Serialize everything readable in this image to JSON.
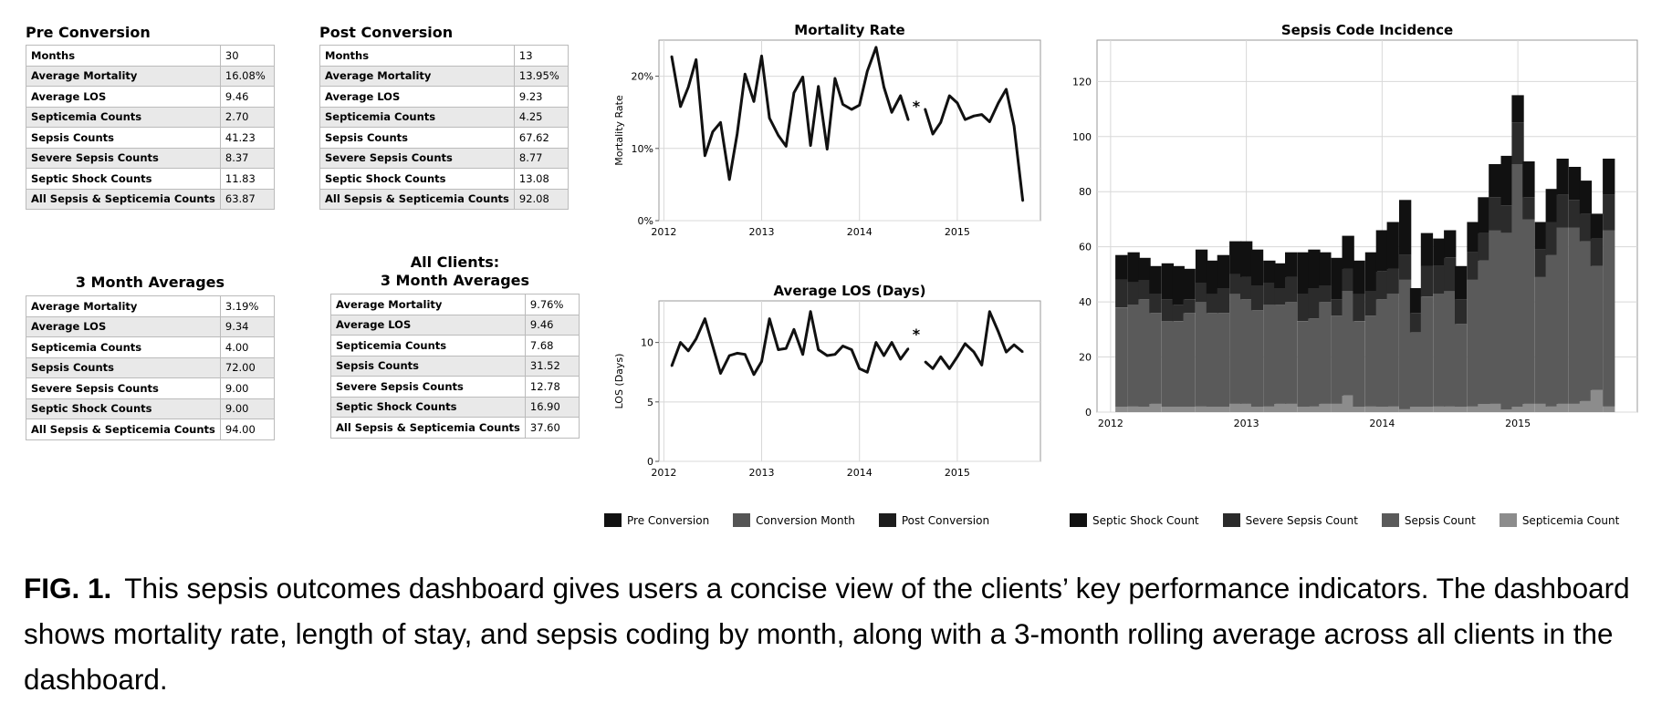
{
  "tables": [
    {
      "title": "Pre Conversion",
      "rows": [
        [
          "Months",
          "30"
        ],
        [
          "Average Mortality",
          "16.08%"
        ],
        [
          "Average LOS",
          "9.46"
        ],
        [
          "Septicemia Counts",
          "2.70"
        ],
        [
          "Sepsis Counts",
          "41.23"
        ],
        [
          "Severe Sepsis Counts",
          "8.37"
        ],
        [
          "Septic Shock Counts",
          "11.83"
        ],
        [
          "All Sepsis & Septicemia Counts",
          "63.87"
        ]
      ]
    },
    {
      "title": "Post Conversion",
      "rows": [
        [
          "Months",
          "13"
        ],
        [
          "Average Mortality",
          "13.95%"
        ],
        [
          "Average LOS",
          "9.23"
        ],
        [
          "Septicemia Counts",
          "4.25"
        ],
        [
          "Sepsis Counts",
          "67.62"
        ],
        [
          "Severe Sepsis Counts",
          "8.77"
        ],
        [
          "Septic Shock Counts",
          "13.08"
        ],
        [
          "All Sepsis & Septicemia Counts",
          "92.08"
        ]
      ]
    },
    {
      "title": "3 Month Averages",
      "rows": [
        [
          "Average Mortality",
          "3.19%"
        ],
        [
          "Average LOS",
          "9.34"
        ],
        [
          "Septicemia Counts",
          "4.00"
        ],
        [
          "Sepsis Counts",
          "72.00"
        ],
        [
          "Severe Sepsis Counts",
          "9.00"
        ],
        [
          "Septic Shock Counts",
          "9.00"
        ],
        [
          "All Sepsis & Septicemia Counts",
          "94.00"
        ]
      ]
    },
    {
      "title_line1": "All Clients:",
      "title_line2": "3 Month Averages",
      "rows": [
        [
          "Average Mortality",
          "9.76%"
        ],
        [
          "Average LOS",
          "9.46"
        ],
        [
          "Septicemia Counts",
          "7.68"
        ],
        [
          "Sepsis Counts",
          "31.52"
        ],
        [
          "Severe Sepsis Counts",
          "12.78"
        ],
        [
          "Septic Shock Counts",
          "16.90"
        ],
        [
          "All Sepsis & Septicemia Counts",
          "37.60"
        ]
      ]
    }
  ],
  "chart_data": [
    {
      "type": "line",
      "title": "Mortality Rate",
      "ylabel": "Mortality Rate",
      "ylim": [
        0,
        25
      ],
      "yticks": [
        "0%",
        "10%",
        "20%"
      ],
      "xticks": [
        "2012",
        "2013",
        "2014",
        "2015"
      ],
      "marker": "*",
      "series": [
        {
          "name": "Pre Conversion",
          "x": [
            2012.08,
            2012.17,
            2012.25,
            2012.33,
            2012.42,
            2012.5,
            2012.58,
            2012.67,
            2012.75,
            2012.83,
            2012.92,
            2013.0,
            2013.08,
            2013.17,
            2013.25,
            2013.33,
            2013.42,
            2013.5,
            2013.58,
            2013.67,
            2013.75,
            2013.83,
            2013.92,
            2014.0,
            2014.08,
            2014.17,
            2014.25,
            2014.33,
            2014.42,
            2014.5
          ],
          "values": [
            22.8,
            15.8,
            18.5,
            22.3,
            9.0,
            12.3,
            13.6,
            5.7,
            12.0,
            20.3,
            16.5,
            22.8,
            14.2,
            11.8,
            10.3,
            17.7,
            19.9,
            10.4,
            18.6,
            9.9,
            19.7,
            16.1,
            15.4,
            16.0,
            20.7,
            24.0,
            18.5,
            15.0,
            17.3,
            13.9
          ]
        },
        {
          "name": "Post Conversion",
          "x": [
            2014.67,
            2014.75,
            2014.83,
            2014.92,
            2015.0,
            2015.08,
            2015.17,
            2015.25,
            2015.33,
            2015.42,
            2015.5,
            2015.58,
            2015.67
          ],
          "values": [
            15.5,
            12.0,
            13.6,
            17.3,
            16.3,
            14.0,
            14.5,
            14.7,
            13.7,
            16.3,
            18.2,
            13.1,
            2.7
          ]
        }
      ]
    },
    {
      "type": "line",
      "title": "Average LOS (Days)",
      "ylabel": "LOS (Days)",
      "ylim": [
        0,
        13.5
      ],
      "yticks": [
        "0",
        "5",
        "10"
      ],
      "xticks": [
        "2012",
        "2013",
        "2014",
        "2015"
      ],
      "marker": "*",
      "series": [
        {
          "name": "Pre Conversion",
          "x": [
            2012.08,
            2012.17,
            2012.25,
            2012.33,
            2012.42,
            2012.5,
            2012.58,
            2012.67,
            2012.75,
            2012.83,
            2012.92,
            2013.0,
            2013.08,
            2013.17,
            2013.25,
            2013.33,
            2013.42,
            2013.5,
            2013.58,
            2013.67,
            2013.75,
            2013.83,
            2013.92,
            2014.0,
            2014.08,
            2014.17,
            2014.25,
            2014.33,
            2014.42,
            2014.5
          ],
          "values": [
            8.0,
            10.0,
            9.3,
            10.3,
            12.0,
            9.7,
            7.4,
            8.9,
            9.1,
            9.0,
            7.3,
            8.4,
            12.0,
            9.4,
            9.5,
            11.1,
            9.0,
            12.6,
            9.4,
            8.9,
            9.0,
            9.7,
            9.4,
            7.8,
            7.5,
            10.0,
            8.9,
            10.0,
            8.6,
            9.5
          ]
        },
        {
          "name": "Post Conversion",
          "x": [
            2014.67,
            2014.75,
            2014.83,
            2014.92,
            2015.0,
            2015.08,
            2015.17,
            2015.25,
            2015.33,
            2015.42,
            2015.5,
            2015.58,
            2015.67
          ],
          "values": [
            8.4,
            7.8,
            8.8,
            7.8,
            8.8,
            9.9,
            9.2,
            8.1,
            12.6,
            10.9,
            9.2,
            9.8,
            9.2
          ]
        }
      ]
    },
    {
      "type": "bar",
      "title": "Sepsis Code Incidence",
      "ylim": [
        0,
        135
      ],
      "yticks": [
        "0",
        "20",
        "40",
        "60",
        "80",
        "100",
        "120"
      ],
      "xticks": [
        "2012",
        "2013",
        "2014",
        "2015"
      ],
      "x": [
        2012.08,
        2012.17,
        2012.25,
        2012.33,
        2012.42,
        2012.5,
        2012.58,
        2012.67,
        2012.75,
        2012.83,
        2012.92,
        2013.0,
        2013.08,
        2013.17,
        2013.25,
        2013.33,
        2013.42,
        2013.5,
        2013.58,
        2013.67,
        2013.75,
        2013.83,
        2013.92,
        2014.0,
        2014.08,
        2014.17,
        2014.25,
        2014.33,
        2014.42,
        2014.5,
        2014.58,
        2014.67,
        2014.75,
        2014.83,
        2014.92,
        2015.0,
        2015.08,
        2015.17,
        2015.25,
        2015.33,
        2015.42,
        2015.5,
        2015.58,
        2015.67
      ],
      "series": [
        {
          "name": "Septicemia Count",
          "values": [
            2,
            2,
            2,
            3,
            2,
            2,
            2,
            2,
            2,
            2,
            3,
            3,
            2,
            2,
            3,
            3,
            2,
            2,
            3,
            3,
            6,
            2,
            2,
            2,
            2,
            1,
            2,
            2,
            2,
            2,
            2,
            2,
            3,
            3,
            1,
            2,
            3,
            3,
            2,
            3,
            3,
            4,
            8,
            2
          ]
        },
        {
          "name": "Sepsis Count",
          "values": [
            36,
            37,
            39,
            33,
            31,
            31,
            34,
            38,
            34,
            34,
            40,
            38,
            35,
            37,
            36,
            37,
            31,
            32,
            37,
            32,
            38,
            31,
            33,
            39,
            41,
            47,
            27,
            40,
            41,
            42,
            30,
            46,
            52,
            63,
            64,
            88,
            67,
            46,
            55,
            64,
            64,
            58,
            45,
            64
          ]
        },
        {
          "name": "Severe Sepsis Count",
          "values": [
            10,
            8,
            7,
            7,
            8,
            6,
            5,
            7,
            7,
            9,
            7,
            8,
            9,
            8,
            6,
            9,
            10,
            11,
            6,
            6,
            8,
            10,
            9,
            10,
            9,
            9,
            7,
            11,
            10,
            12,
            9,
            10,
            10,
            12,
            10,
            15,
            8,
            10,
            12,
            12,
            10,
            10,
            10,
            13
          ]
        },
        {
          "name": "Septic Shock Count",
          "values": [
            9,
            11,
            8,
            10,
            13,
            14,
            11,
            12,
            12,
            12,
            12,
            13,
            13,
            8,
            9,
            9,
            15,
            14,
            12,
            15,
            12,
            12,
            14,
            15,
            17,
            20,
            9,
            12,
            10,
            10,
            12,
            11,
            13,
            12,
            18,
            10,
            13,
            10,
            12,
            13,
            12,
            12,
            9,
            13
          ]
        }
      ]
    }
  ],
  "legends": [
    {
      "items": [
        {
          "label": "Pre Conversion",
          "color": "#111111"
        },
        {
          "label": "Conversion Month",
          "color": "#555555"
        },
        {
          "label": "Post Conversion",
          "color": "#1d1d1d"
        }
      ]
    },
    {
      "items": [
        {
          "label": "Septic Shock Count",
          "color": "#111111"
        },
        {
          "label": "Severe Sepsis Count",
          "color": "#2b2b2b"
        },
        {
          "label": "Sepsis Count",
          "color": "#5a5a5a"
        },
        {
          "label": "Septicemia Count",
          "color": "#8c8c8c"
        }
      ]
    }
  ],
  "caption": {
    "label": "FIG. 1.",
    "text": "This sepsis outcomes dashboard gives users a concise view of the clients’ key performance indicators. The dashboard shows mortality rate, length of stay, and sepsis coding by month, along with a 3-month rolling average across all clients in the dashboard."
  }
}
